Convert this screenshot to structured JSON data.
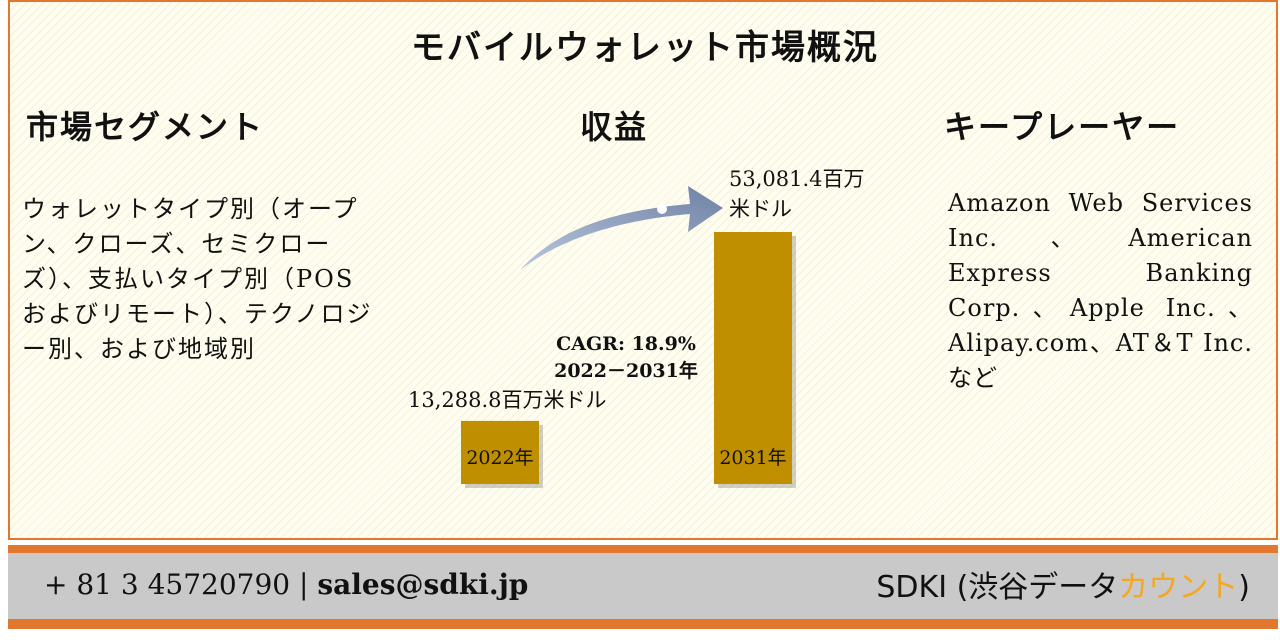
{
  "title": "モバイルウォレット市場概況",
  "segments": {
    "heading": "市場セグメント",
    "text": "ウォレットタイプ別（オープン、クローズ、セミクローズ）、支払いタイプ別（POSおよびリモート）、テクノロジー別、および地域別"
  },
  "revenue": {
    "heading": "収益"
  },
  "players": {
    "heading": "キープレーヤー",
    "text": "Amazon Web Services Inc.、American Express Banking Corp.、Apple Inc.、Alipay.com、AT＆T Inc.など"
  },
  "chart_data": {
    "type": "bar",
    "categories": [
      "2022年",
      "2031年"
    ],
    "values": [
      13288.8,
      53081.4
    ],
    "value_labels": [
      "13,288.8百万米ドル",
      "53,081.4百万米ドル"
    ],
    "value_label_lines": [
      [
        "13,288.8百万米ドル"
      ],
      [
        "53,081.4百万",
        "米ドル"
      ]
    ],
    "annotation": [
      "CAGR: 18.9%",
      "2022－2031年"
    ],
    "bar_color": "#bf8f00",
    "arrow_color": "#8193b0"
  },
  "footer": {
    "phone": "+ 81 3 45720790 |",
    "email": "sales@sdki.jp",
    "brand_main": "SDKI (渋谷データ",
    "brand_accent": "カウント",
    "brand_close": ")",
    "accent_color": "#f5a623"
  }
}
